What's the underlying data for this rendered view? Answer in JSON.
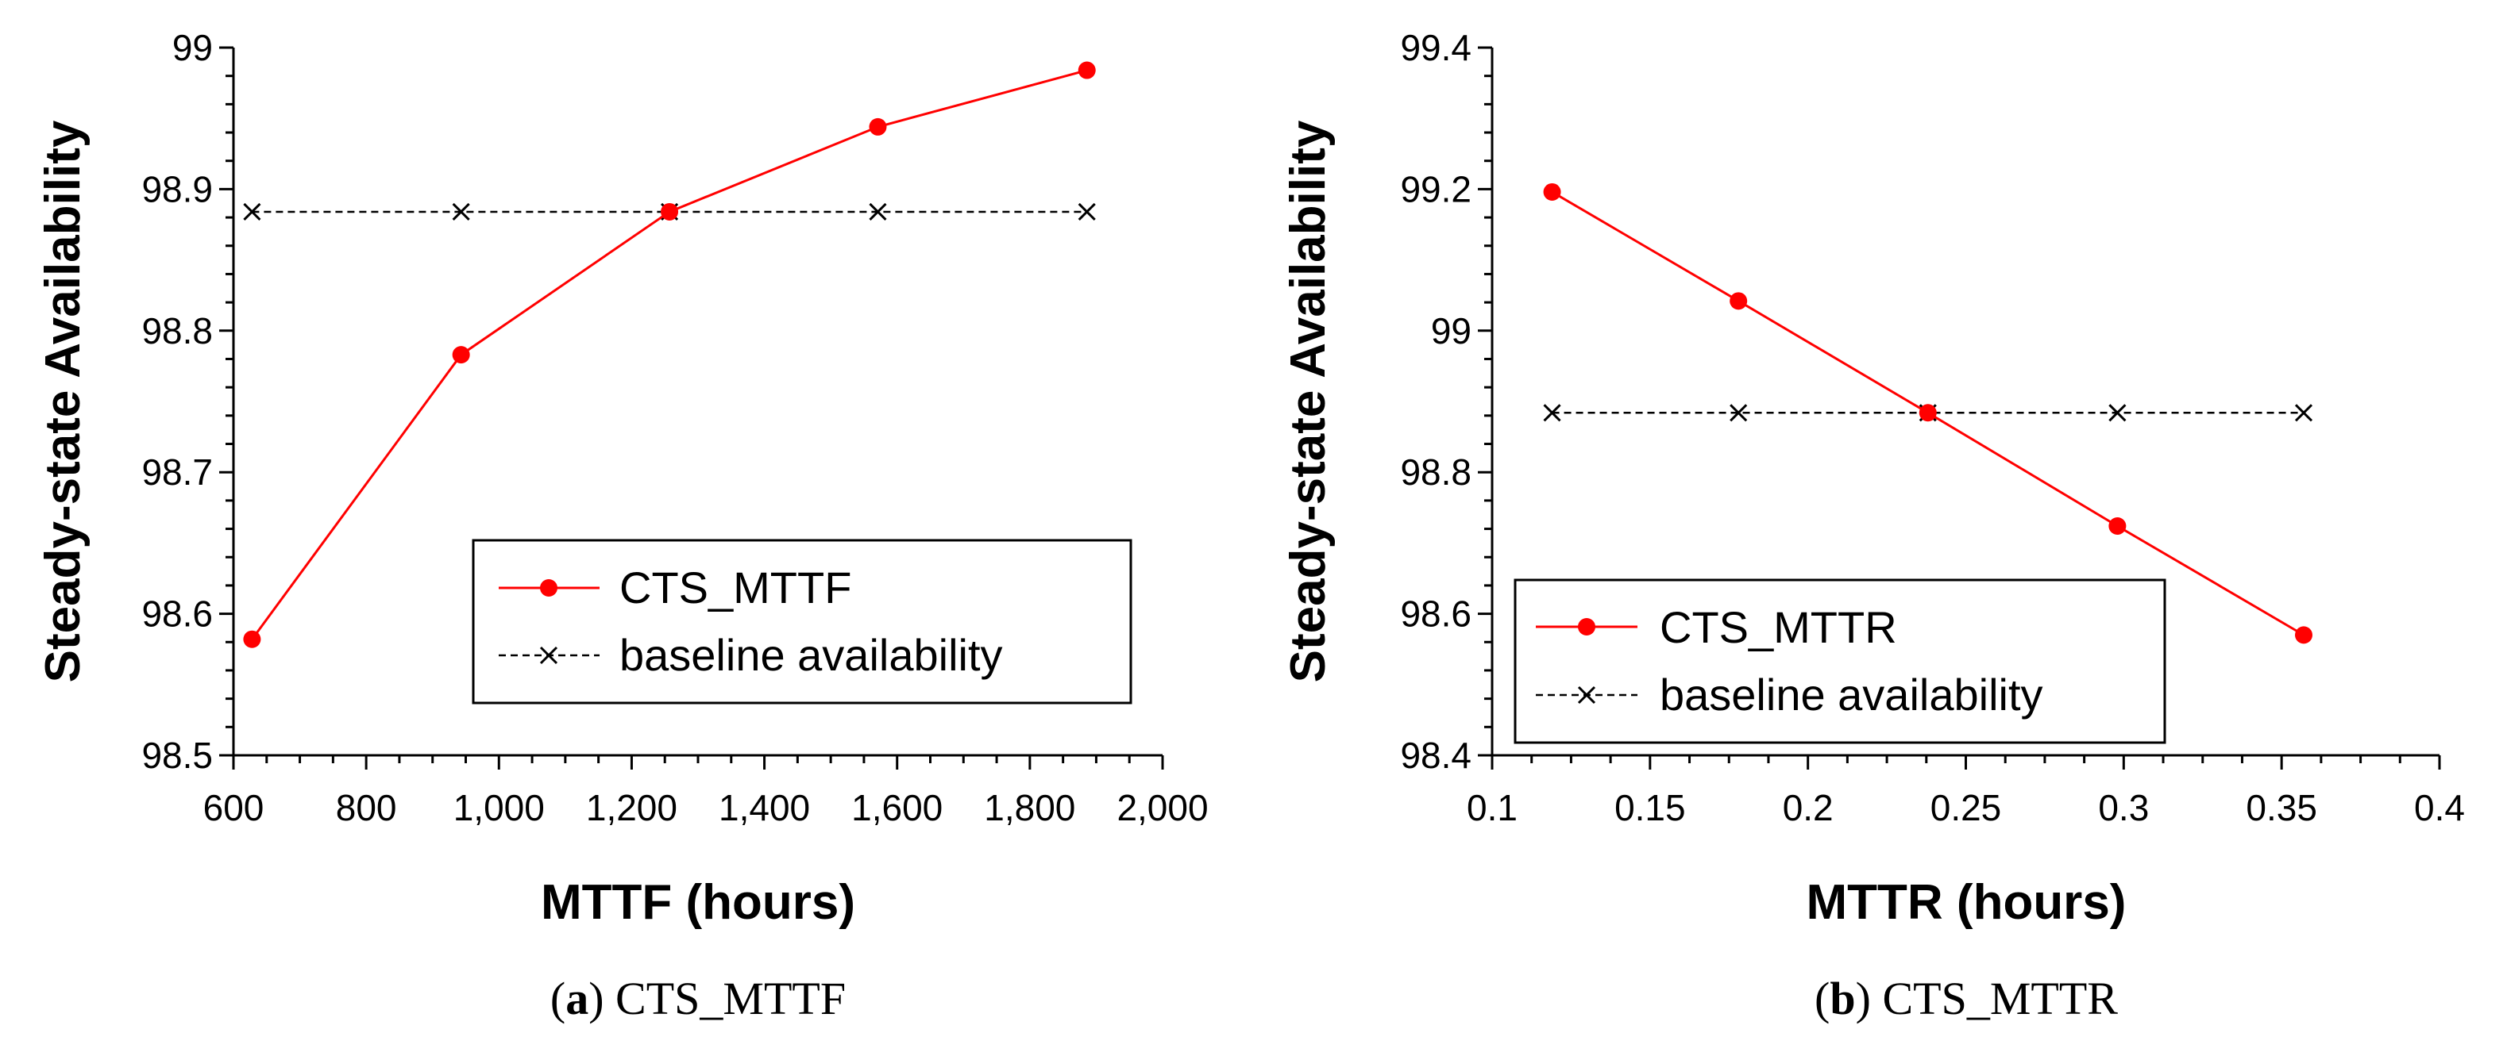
{
  "chart_data": [
    {
      "type": "line",
      "panel_id": "a",
      "xlabel": "MTTF (hours)",
      "ylabel": "Steady-state Availability",
      "xlim": [
        600,
        2000
      ],
      "ylim": [
        98.5,
        99
      ],
      "xticks": [
        600,
        800,
        1000,
        1200,
        1400,
        1600,
        1800,
        2000
      ],
      "xtick_labels": [
        "600",
        "800",
        "1,000",
        "1,200",
        "1,400",
        "1,600",
        "1,800",
        "2,000"
      ],
      "yticks": [
        98.5,
        98.6,
        98.7,
        98.8,
        98.9,
        99
      ],
      "ytick_labels": [
        "98.5",
        "98.6",
        "98.7",
        "98.8",
        "98.9",
        "99"
      ],
      "x": [
        628,
        943,
        1257,
        1571,
        1886
      ],
      "series": [
        {
          "name": "CTS_MTTF",
          "values": [
            98.582,
            98.783,
            98.884,
            98.944,
            98.984
          ],
          "color": "#ff0000",
          "marker": "circle",
          "style": "solid"
        },
        {
          "name": "baseline availability",
          "values": [
            98.884,
            98.884,
            98.884,
            98.884,
            98.884
          ],
          "color": "#000000",
          "marker": "x",
          "style": "dashed"
        }
      ],
      "legend_position": "lower-right",
      "caption_label": "(a)",
      "caption_letter": "a",
      "caption_title": "CTS_MTTF"
    },
    {
      "type": "line",
      "panel_id": "b",
      "xlabel": "MTTR (hours)",
      "ylabel": "Steady-state Availability",
      "xlim": [
        0.1,
        0.4
      ],
      "ylim": [
        98.4,
        99.4
      ],
      "xticks": [
        0.1,
        0.15,
        0.2,
        0.25,
        0.3,
        0.35,
        0.4
      ],
      "xtick_labels": [
        "0.1",
        "0.15",
        "0.2",
        "0.25",
        "0.3",
        "0.35",
        "0.4"
      ],
      "yticks": [
        98.4,
        98.6,
        98.8,
        99,
        99.2,
        99.4
      ],
      "ytick_labels": [
        "98.4",
        "98.6",
        "98.8",
        "99",
        "99.2",
        "99.4"
      ],
      "x": [
        0.119,
        0.178,
        0.238,
        0.298,
        0.357
      ],
      "series": [
        {
          "name": "CTS_MTTR",
          "values": [
            99.196,
            99.042,
            98.884,
            98.724,
            98.57
          ],
          "color": "#ff0000",
          "marker": "circle",
          "style": "solid"
        },
        {
          "name": "baseline availability",
          "values": [
            98.884,
            98.884,
            98.884,
            98.884,
            98.884
          ],
          "color": "#000000",
          "marker": "x",
          "style": "dashed"
        }
      ],
      "legend_position": "lower-left",
      "caption_label": "(b)",
      "caption_letter": "b",
      "caption_title": "CTS_MTTR"
    }
  ]
}
